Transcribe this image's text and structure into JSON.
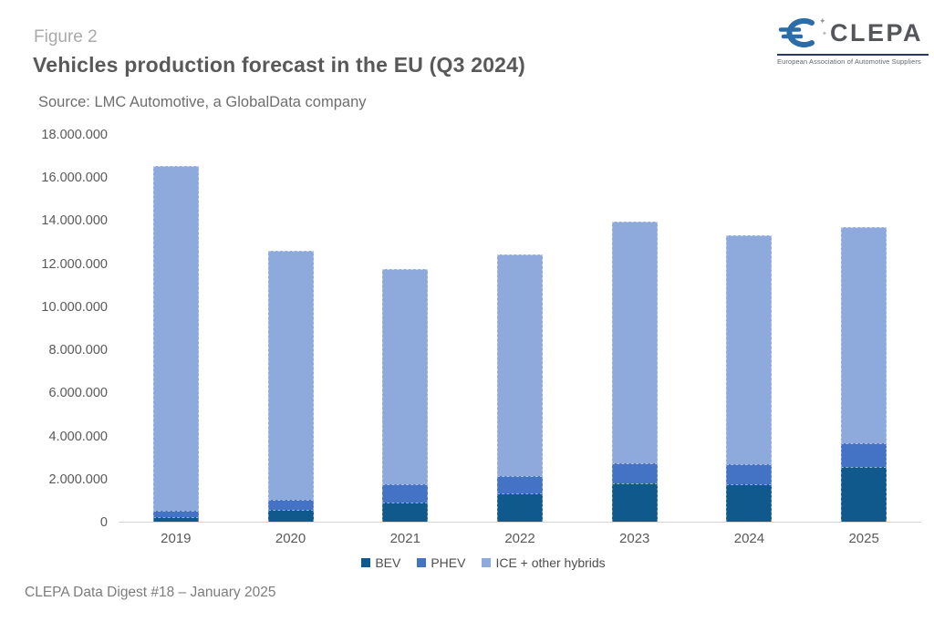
{
  "header": {
    "figure_label": "Figure 2",
    "title": "Vehicles production forecast in the EU (Q3 2024)",
    "source": "Source: LMC Automotive, a GlobalData company"
  },
  "logo": {
    "name": "CLEPA",
    "tagline": "European Association of Automotive Suppliers",
    "brand_blue": "#2b6ca9",
    "text_color": "#54565a"
  },
  "chart_data": {
    "type": "bar",
    "stacked": true,
    "title": "Vehicles production forecast in the EU (Q3 2024)",
    "xlabel": "",
    "ylabel": "",
    "categories": [
      "2019",
      "2020",
      "2021",
      "2022",
      "2023",
      "2024",
      "2025"
    ],
    "series": [
      {
        "name": "BEV",
        "color": "#10598c",
        "values": [
          200000,
          550000,
          900000,
          1300000,
          1800000,
          1750000,
          2550000
        ]
      },
      {
        "name": "PHEV",
        "color": "#4472c4",
        "values": [
          300000,
          450000,
          850000,
          800000,
          900000,
          900000,
          1100000
        ]
      },
      {
        "name": "ICE + other hybrids",
        "color": "#8ea9dc",
        "values": [
          16000000,
          11600000,
          10000000,
          10300000,
          11250000,
          10650000,
          10050000
        ]
      }
    ],
    "totals": [
      16500000,
      12600000,
      11750000,
      12400000,
      13950000,
      13300000,
      13700000
    ],
    "ylim": [
      0,
      18000000
    ],
    "ytick_step": 2000000,
    "ytick_labels": [
      "0",
      "2.000.000",
      "4.000.000",
      "6.000.000",
      "8.000.000",
      "10.000.000",
      "12.000.000",
      "14.000.000",
      "16.000.000",
      "18.000.000"
    ],
    "number_format": "thousands-dot",
    "gridlines": false,
    "legend_position": "bottom"
  },
  "footer": {
    "caption": "CLEPA Data Digest #18 – January 2025"
  }
}
